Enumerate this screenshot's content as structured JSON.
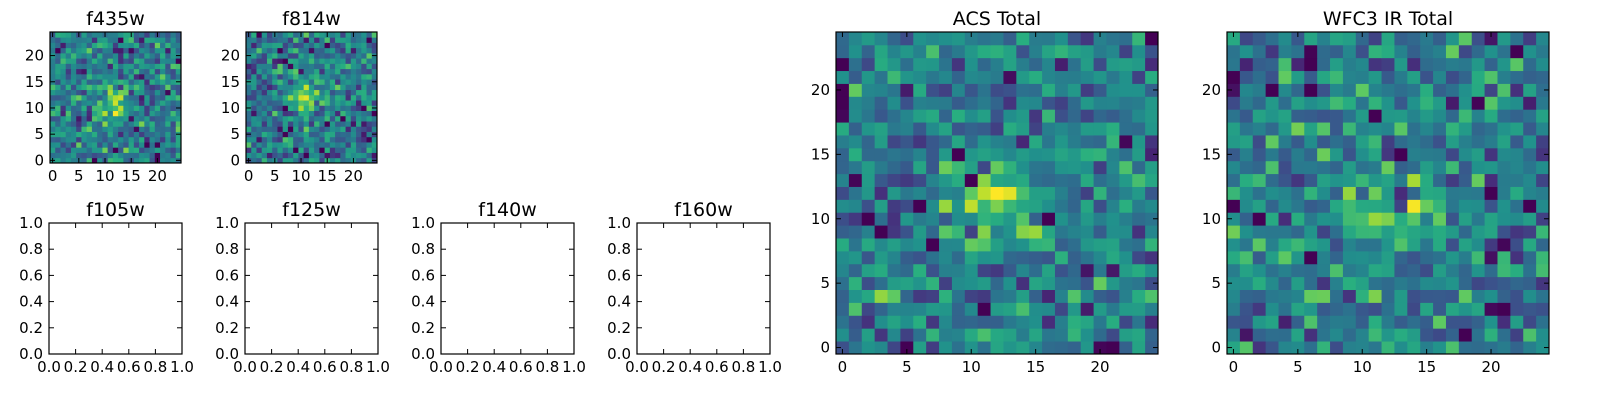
{
  "chart_data": [
    {
      "type": "heatmap",
      "title": "f435w",
      "grid_size": 25,
      "x_ticks": [
        "0",
        "5",
        "10",
        "15",
        "20"
      ],
      "y_ticks": [
        "0",
        "5",
        "10",
        "15",
        "20"
      ],
      "colormap": "viridis",
      "peak_center": [
        11,
        11
      ],
      "seed": 435
    },
    {
      "type": "heatmap",
      "title": "f814w",
      "grid_size": 25,
      "x_ticks": [
        "0",
        "5",
        "10",
        "15",
        "20"
      ],
      "y_ticks": [
        "0",
        "5",
        "10",
        "15",
        "20"
      ],
      "colormap": "viridis",
      "peak_center": [
        11,
        12
      ],
      "seed": 814
    },
    {
      "type": "empty",
      "title": "f105w",
      "x_ticks": [
        "0.0",
        "0.2",
        "0.4",
        "0.6",
        "0.8",
        "1.0"
      ],
      "y_ticks": [
        "0.0",
        "0.2",
        "0.4",
        "0.6",
        "0.8",
        "1.0"
      ],
      "xlim": [
        0,
        1
      ],
      "ylim": [
        0,
        1
      ]
    },
    {
      "type": "empty",
      "title": "f125w",
      "x_ticks": [
        "0.0",
        "0.2",
        "0.4",
        "0.6",
        "0.8",
        "1.0"
      ],
      "y_ticks": [
        "0.0",
        "0.2",
        "0.4",
        "0.6",
        "0.8",
        "1.0"
      ],
      "xlim": [
        0,
        1
      ],
      "ylim": [
        0,
        1
      ]
    },
    {
      "type": "empty",
      "title": "f140w",
      "x_ticks": [
        "0.0",
        "0.2",
        "0.4",
        "0.6",
        "0.8",
        "1.0"
      ],
      "y_ticks": [
        "0.0",
        "0.2",
        "0.4",
        "0.6",
        "0.8",
        "1.0"
      ],
      "xlim": [
        0,
        1
      ],
      "ylim": [
        0,
        1
      ]
    },
    {
      "type": "empty",
      "title": "f160w",
      "x_ticks": [
        "0.0",
        "0.2",
        "0.4",
        "0.6",
        "0.8",
        "1.0"
      ],
      "y_ticks": [
        "0.0",
        "0.2",
        "0.4",
        "0.6",
        "0.8",
        "1.0"
      ],
      "xlim": [
        0,
        1
      ],
      "ylim": [
        0,
        1
      ]
    },
    {
      "type": "heatmap",
      "title": "ACS Total",
      "grid_size": 25,
      "x_ticks": [
        "0",
        "5",
        "10",
        "15",
        "20"
      ],
      "y_ticks": [
        "0",
        "5",
        "10",
        "15",
        "20"
      ],
      "colormap": "viridis",
      "peak_center": [
        12,
        11
      ],
      "seed": 1001
    },
    {
      "type": "heatmap",
      "title": "WFC3 IR Total",
      "grid_size": 25,
      "x_ticks": [
        "0",
        "5",
        "10",
        "15",
        "20"
      ],
      "y_ticks": [
        "0",
        "5",
        "10",
        "15",
        "20"
      ],
      "colormap": "viridis",
      "peak_center": [
        12,
        11
      ],
      "seed": 3003
    }
  ]
}
